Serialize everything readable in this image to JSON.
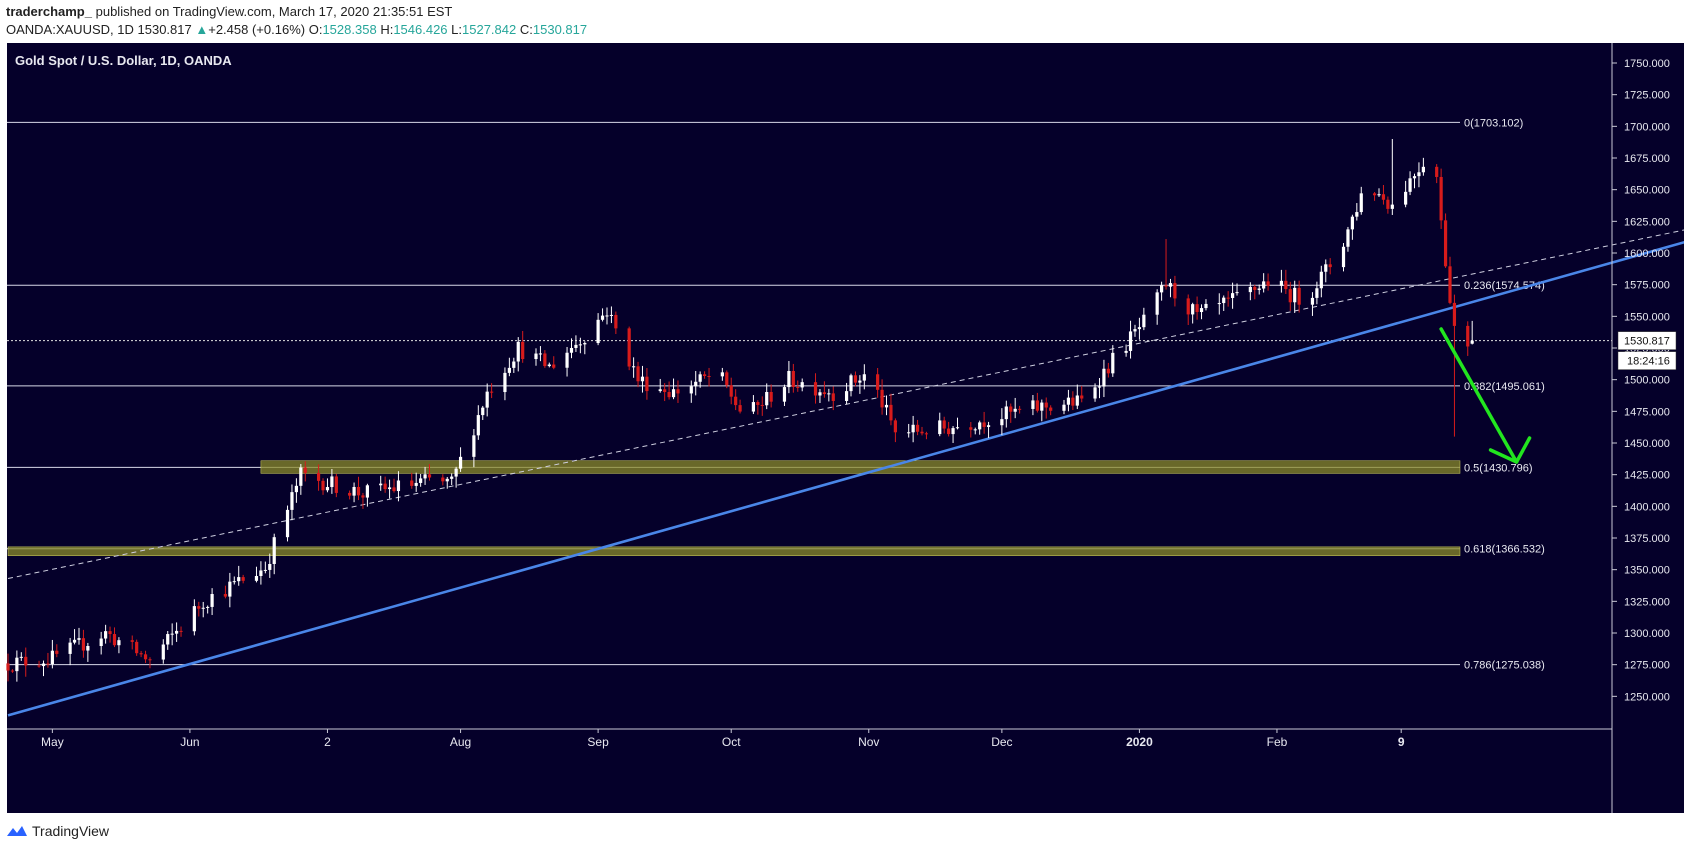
{
  "header": {
    "author": "traderchamp_",
    "published_text": "published on TradingView.com, March 17, 2020 21:35:51 EST",
    "symbol": "OANDA:XAUUSD, 1D",
    "last": "1530.817",
    "change_arrow": "▲",
    "change": "+2.458 (+0.16%)",
    "o_label": "O:",
    "o_value": "1528.358",
    "h_label": "H:",
    "h_value": "1546.426",
    "l_label": "L:",
    "l_value": "1527.842",
    "c_label": "C:",
    "c_value": "1530.817"
  },
  "footer": {
    "brand": "TradingView",
    "logo_icon": "tradingview-logo-icon"
  },
  "colors": {
    "background": "#05002a",
    "up": "#ffffff",
    "down": "#d81b1b",
    "trendline": "#4a86e8",
    "arrow": "#22e61f",
    "zone": "#8b8b2a",
    "level": "#d8d8e8"
  },
  "chart_data": {
    "type": "candlestick",
    "title": "Gold Spot / U.S. Dollar, 1D, OANDA",
    "ylim": [
      1225,
      1765
    ],
    "y_ticks": [
      1250,
      1275,
      1300,
      1325,
      1350,
      1375,
      1400,
      1425,
      1450,
      1475,
      1500,
      1525,
      1550,
      1575,
      1600,
      1625,
      1650,
      1675,
      1700,
      1725,
      1750
    ],
    "y_tick_labels": [
      "1250.000",
      "1275.000",
      "1300.000",
      "1325.000",
      "1350.000",
      "1375.000",
      "1400.000",
      "1425.000",
      "1450.000",
      "1475.000",
      "1500.000",
      "1525.000",
      "1550.000",
      "1575.000",
      "1600.000",
      "1625.000",
      "1650.000",
      "1675.000",
      "1700.000",
      "1725.000",
      "1750.000"
    ],
    "x_range_days": [
      0,
      325
    ],
    "x_ticks": [
      {
        "label": "May",
        "day": 10
      },
      {
        "label": "Jun",
        "day": 41
      },
      {
        "label": "2",
        "day": 72
      },
      {
        "label": "Aug",
        "day": 102
      },
      {
        "label": "Sep",
        "day": 133
      },
      {
        "label": "Oct",
        "day": 163
      },
      {
        "label": "Nov",
        "day": 194
      },
      {
        "label": "Dec",
        "day": 224
      },
      {
        "label": "2020",
        "day": 255,
        "bold": true
      },
      {
        "label": "Feb",
        "day": 286
      },
      {
        "label": "9",
        "day": 314,
        "bold": true
      }
    ],
    "fib_levels": [
      {
        "ratio": "0",
        "value": 1703.102,
        "label": "0(1703.102)"
      },
      {
        "ratio": "0.236",
        "value": 1574.574,
        "label": "0.236(1574.574)"
      },
      {
        "ratio": "0.382",
        "value": 1495.061,
        "label": "0.382(1495.061)"
      },
      {
        "ratio": "0.5",
        "value": 1430.796,
        "label": "0.5(1430.796)"
      },
      {
        "ratio": "0.618",
        "value": 1366.532,
        "label": "0.618(1366.532)"
      },
      {
        "ratio": "0.786",
        "value": 1275.038,
        "label": "0.786(1275.038)"
      }
    ],
    "zones": [
      {
        "name": "support-zone-upper",
        "from": 1426,
        "to": 1436,
        "start_day": 57
      },
      {
        "name": "support-zone-lower",
        "from": 1361,
        "to": 1368,
        "start_day": 0
      }
    ],
    "current_price": 1530.817,
    "current_price_label": "1530.817",
    "countdown_label": "18:24:16",
    "trendlines": [
      {
        "name": "rising-trendline",
        "style": "solid",
        "from": {
          "day": 0,
          "price": 1235
        },
        "to": {
          "day": 440,
          "price": 1670
        }
      },
      {
        "name": "channel-dashed-line",
        "style": "dashed",
        "from": {
          "day": 0,
          "price": 1343
        },
        "to": {
          "day": 497,
          "price": 1705
        }
      }
    ],
    "projection_arrow": {
      "from": {
        "day": 323,
        "price": 1540
      },
      "to": {
        "day": 340,
        "price": 1435
      }
    },
    "anchors": [
      {
        "day": 0,
        "price": 1276
      },
      {
        "day": 10,
        "price": 1280
      },
      {
        "day": 22,
        "price": 1300
      },
      {
        "day": 32,
        "price": 1278
      },
      {
        "day": 44,
        "price": 1325
      },
      {
        "day": 58,
        "price": 1352
      },
      {
        "day": 66,
        "price": 1425
      },
      {
        "day": 80,
        "price": 1410
      },
      {
        "day": 95,
        "price": 1420
      },
      {
        "day": 100,
        "price": 1418
      },
      {
        "day": 108,
        "price": 1490
      },
      {
        "day": 115,
        "price": 1525
      },
      {
        "day": 122,
        "price": 1510
      },
      {
        "day": 130,
        "price": 1535
      },
      {
        "day": 135,
        "price": 1555
      },
      {
        "day": 142,
        "price": 1500
      },
      {
        "day": 150,
        "price": 1490
      },
      {
        "day": 160,
        "price": 1505
      },
      {
        "day": 166,
        "price": 1470
      },
      {
        "day": 176,
        "price": 1500
      },
      {
        "day": 186,
        "price": 1490
      },
      {
        "day": 194,
        "price": 1505
      },
      {
        "day": 200,
        "price": 1458
      },
      {
        "day": 212,
        "price": 1462
      },
      {
        "day": 222,
        "price": 1470
      },
      {
        "day": 232,
        "price": 1478
      },
      {
        "day": 242,
        "price": 1483
      },
      {
        "day": 250,
        "price": 1520
      },
      {
        "day": 256,
        "price": 1545
      },
      {
        "day": 261,
        "price": 1575
      },
      {
        "day": 268,
        "price": 1550
      },
      {
        "day": 276,
        "price": 1562
      },
      {
        "day": 284,
        "price": 1578
      },
      {
        "day": 292,
        "price": 1562
      },
      {
        "day": 300,
        "price": 1600
      },
      {
        "day": 306,
        "price": 1655
      },
      {
        "day": 312,
        "price": 1638
      },
      {
        "day": 318,
        "price": 1668
      },
      {
        "day": 321,
        "price": 1680
      },
      {
        "day": 324,
        "price": 1600
      },
      {
        "day": 327,
        "price": 1510
      },
      {
        "day": 329,
        "price": 1515
      },
      {
        "day": 330,
        "price": 1531
      }
    ]
  }
}
